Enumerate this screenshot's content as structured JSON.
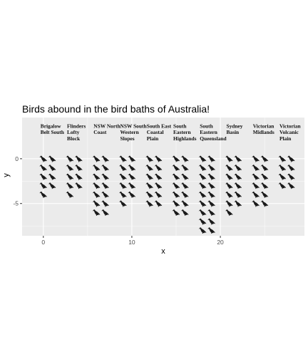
{
  "chart_data": {
    "type": "scatter",
    "title": "Birds abound in the bird baths of Australia!",
    "xlabel": "x",
    "ylabel": "y",
    "xlim": [
      -2.4,
      29.5
    ],
    "ylim": [
      -8.6,
      4.6
    ],
    "x_ticks": [
      0,
      10,
      20
    ],
    "y_ticks": [
      0,
      -5
    ],
    "x_minor_ticks": [
      5,
      15,
      25
    ],
    "y_minor_ticks": [
      -2.5,
      -7.5
    ],
    "grid": true,
    "marker": "bird-icon",
    "background": "#ebebeb",
    "gridline_color": "#ffffff",
    "marker_color": "#1a1a1a",
    "regions": [
      {
        "label_lines": [
          "Brigalow",
          "Belt South"
        ],
        "x": 0,
        "label_y": 3.6,
        "columns": [
          0,
          1
        ],
        "rows": [
          5,
          4
        ]
      },
      {
        "label_lines": [
          "Flinders",
          "Lofty",
          "Block"
        ],
        "x": 3,
        "label_y": 3.6,
        "columns": [
          3,
          4
        ],
        "rows": [
          5,
          4
        ]
      },
      {
        "label_lines": [
          "NSW North",
          "Coast"
        ],
        "x": 6,
        "label_y": 3.6,
        "columns": [
          6,
          7
        ],
        "rows": [
          7,
          7
        ]
      },
      {
        "label_lines": [
          "NSW South",
          "Western",
          "Slopes"
        ],
        "x": 9,
        "label_y": 3.6,
        "columns": [
          9,
          10
        ],
        "rows": [
          6,
          5
        ]
      },
      {
        "label_lines": [
          "South East",
          "Coastal",
          "Plain"
        ],
        "x": 12,
        "label_y": 3.6,
        "columns": [
          12,
          13
        ],
        "rows": [
          6,
          6
        ]
      },
      {
        "label_lines": [
          "South",
          "Eastern",
          "Highlands"
        ],
        "x": 15,
        "label_y": 3.6,
        "columns": [
          15,
          16
        ],
        "rows": [
          7,
          7
        ]
      },
      {
        "label_lines": [
          "South",
          "Eastern",
          "Queensland"
        ],
        "x": 18,
        "label_y": 3.6,
        "columns": [
          18,
          19
        ],
        "rows": [
          9,
          9
        ]
      },
      {
        "label_lines": [
          "Sydney",
          "Basin"
        ],
        "x": 21,
        "label_y": 3.6,
        "columns": [
          21,
          22
        ],
        "rows": [
          7,
          6
        ]
      },
      {
        "label_lines": [
          "Victorian",
          "Midlands"
        ],
        "x": 24,
        "label_y": 3.6,
        "columns": [
          24,
          25
        ],
        "rows": [
          6,
          6
        ]
      },
      {
        "label_lines": [
          "Victorian",
          "Volcanic",
          "Plain"
        ],
        "x": 27,
        "label_y": 3.6,
        "columns": [
          27,
          28
        ],
        "rows": [
          4,
          4
        ]
      }
    ]
  }
}
